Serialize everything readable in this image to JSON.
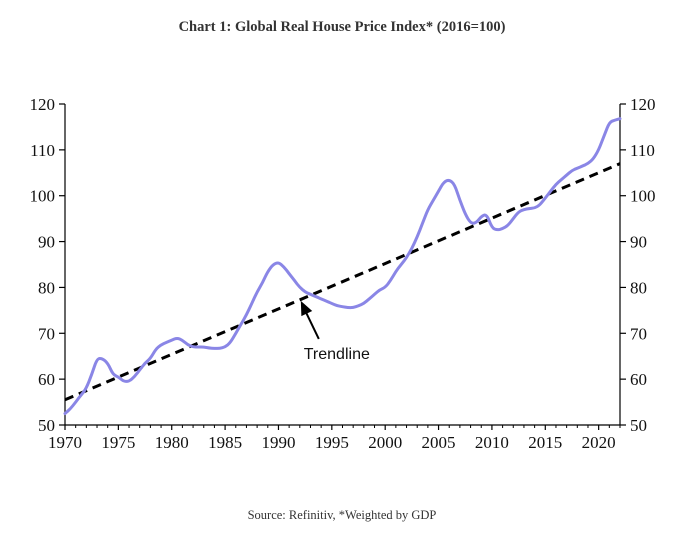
{
  "chart_data": {
    "type": "line",
    "title": "Chart 1: Global Real House Price Index* (2016=100)",
    "source": "Source: Refinitiv, *Weighted by GDP",
    "xlim": [
      1970,
      2022
    ],
    "ylim": [
      50,
      120
    ],
    "x_ticks": [
      1970,
      1975,
      1980,
      1985,
      1990,
      1995,
      2000,
      2005,
      2010,
      2015,
      2020
    ],
    "y_ticks": [
      50,
      60,
      70,
      80,
      90,
      100,
      110,
      120
    ],
    "y_ticks_right": [
      50,
      60,
      70,
      80,
      90,
      100,
      110,
      120
    ],
    "colors": {
      "index_line": "#8A86E6",
      "trend_line": "#000000",
      "axis": "#000000"
    },
    "series": [
      {
        "name": "Global Real House Price Index",
        "x": [
          1970.0,
          1970.5,
          1971.0,
          1971.5,
          1972.0,
          1972.5,
          1973.0,
          1973.5,
          1974.0,
          1974.5,
          1975.0,
          1975.5,
          1976.0,
          1976.5,
          1977.0,
          1977.5,
          1978.0,
          1978.5,
          1979.0,
          1979.5,
          1980.0,
          1980.5,
          1981.0,
          1981.5,
          1982.0,
          1982.5,
          1983.0,
          1983.5,
          1984.0,
          1984.5,
          1985.0,
          1985.5,
          1986.0,
          1986.5,
          1987.0,
          1987.5,
          1988.0,
          1988.5,
          1989.0,
          1989.5,
          1990.0,
          1990.5,
          1991.0,
          1991.5,
          1992.0,
          1992.5,
          1993.0,
          1993.5,
          1994.0,
          1994.5,
          1995.0,
          1995.5,
          1996.0,
          1996.5,
          1997.0,
          1997.5,
          1998.0,
          1998.5,
          1999.0,
          1999.5,
          2000.0,
          2000.5,
          2001.0,
          2001.5,
          2002.0,
          2002.5,
          2003.0,
          2003.5,
          2004.0,
          2004.5,
          2005.0,
          2005.5,
          2006.0,
          2006.5,
          2007.0,
          2007.5,
          2008.0,
          2008.5,
          2009.0,
          2009.5,
          2010.0,
          2010.5,
          2011.0,
          2011.5,
          2012.0,
          2012.5,
          2013.0,
          2013.5,
          2014.0,
          2014.5,
          2015.0,
          2015.5,
          2016.0,
          2016.5,
          2017.0,
          2017.5,
          2018.0,
          2018.5,
          2019.0,
          2019.5,
          2020.0,
          2020.5,
          2021.0,
          2021.5,
          2022.0
        ],
        "values": [
          52.5,
          53.5,
          55.0,
          56.5,
          58.0,
          61.0,
          64.5,
          64.5,
          63.5,
          61.0,
          60.5,
          59.5,
          59.5,
          60.5,
          62.0,
          63.5,
          64.5,
          66.5,
          67.5,
          68.0,
          68.5,
          69.0,
          68.5,
          67.5,
          67.0,
          67.0,
          67.0,
          66.8,
          66.7,
          66.7,
          67.0,
          68.0,
          70.0,
          72.0,
          74.0,
          76.5,
          79.0,
          81.0,
          83.5,
          85.0,
          85.5,
          84.5,
          83.0,
          81.5,
          80.0,
          79.0,
          78.5,
          78.0,
          77.5,
          77.0,
          76.5,
          76.0,
          75.8,
          75.6,
          75.6,
          76.0,
          76.5,
          77.5,
          78.5,
          79.5,
          80.0,
          81.5,
          83.5,
          85.0,
          86.5,
          88.5,
          91.0,
          94.0,
          97.0,
          99.0,
          101.0,
          103.0,
          103.5,
          102.5,
          99.0,
          96.0,
          94.0,
          94.0,
          95.5,
          96.0,
          93.0,
          92.5,
          92.8,
          93.5,
          95.0,
          96.5,
          97.0,
          97.2,
          97.3,
          98.0,
          99.5,
          101.0,
          102.5,
          103.5,
          104.5,
          105.5,
          106.0,
          106.5,
          107.0,
          108.0,
          110.0,
          113.0,
          116.0,
          116.5,
          116.8
        ],
        "color": "#8A86E6",
        "style": "solid"
      },
      {
        "name": "Trendline",
        "x": [
          1970,
          2022
        ],
        "values": [
          55.5,
          107.0
        ],
        "color": "#000000",
        "style": "dashed"
      }
    ],
    "annotations": [
      {
        "text": "Trendline",
        "arrow_to": {
          "x": 1992.0,
          "y": 77.5
        }
      }
    ]
  }
}
